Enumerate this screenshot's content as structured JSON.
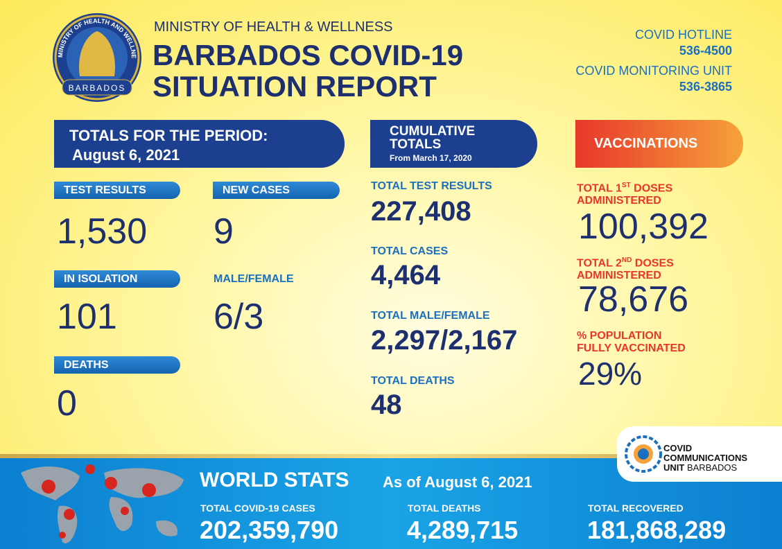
{
  "header": {
    "ministry": "MINISTRY OF HEALTH & WELLNESS",
    "title_line1": "BARBADOS COVID-19",
    "title_line2": "SITUATION REPORT",
    "logo_ring": "MINISTRY OF HEALTH AND WELLNESS",
    "logo_country": "BARBADOS"
  },
  "contacts": [
    {
      "label": "COVID HOTLINE",
      "number": "536-4500"
    },
    {
      "label": "COVID MONITORING UNIT",
      "number": "536-3865"
    }
  ],
  "period": {
    "heading": "TOTALS FOR THE PERIOD:",
    "date": "August 6, 2021",
    "items": [
      {
        "label": "TEST RESULTS",
        "value": "1,530"
      },
      {
        "label": "NEW CASES",
        "value": "9"
      },
      {
        "label": "IN ISOLATION",
        "value": "101"
      },
      {
        "label": "MALE/FEMALE",
        "value": "6/3"
      },
      {
        "label": "DEATHS",
        "value": "0"
      }
    ]
  },
  "cumulative": {
    "heading_line1": "CUMULATIVE",
    "heading_line2": "TOTALS",
    "since": "From March 17, 2020",
    "items": [
      {
        "label": "TOTAL TEST RESULTS",
        "value": "227,408"
      },
      {
        "label": "TOTAL CASES",
        "value": "4,464"
      },
      {
        "label": "TOTAL MALE/FEMALE",
        "value": "2,297/2,167"
      },
      {
        "label": "TOTAL DEATHS",
        "value": "48"
      }
    ]
  },
  "vaccinations": {
    "heading": "VACCINATIONS",
    "items": [
      {
        "label_pre": "TOTAL 1",
        "label_sup": "ST",
        "label_post": " DOSES",
        "label_line2": "ADMINISTERED",
        "value": "100,392"
      },
      {
        "label_pre": "TOTAL 2",
        "label_sup": "ND",
        "label_post": " DOSES",
        "label_line2": "ADMINISTERED",
        "value": "78,676"
      },
      {
        "label_pre": "% POPULATION",
        "label_line2": "FULLY VACCINATED",
        "value": "29%"
      }
    ]
  },
  "ccu_logo": {
    "line1": "COVID",
    "line2": "COMMUNICATIONS",
    "line3": "UNIT",
    "line3b": "BARBADOS"
  },
  "world": {
    "title": "WORLD STATS",
    "as_of": "As of August 6, 2021",
    "items": [
      {
        "label": "TOTAL COVID-19 CASES",
        "value": "202,359,790"
      },
      {
        "label": "TOTAL DEATHS",
        "value": "4,289,715"
      },
      {
        "label": "TOTAL RECOVERED",
        "value": "181,868,289"
      }
    ]
  }
}
